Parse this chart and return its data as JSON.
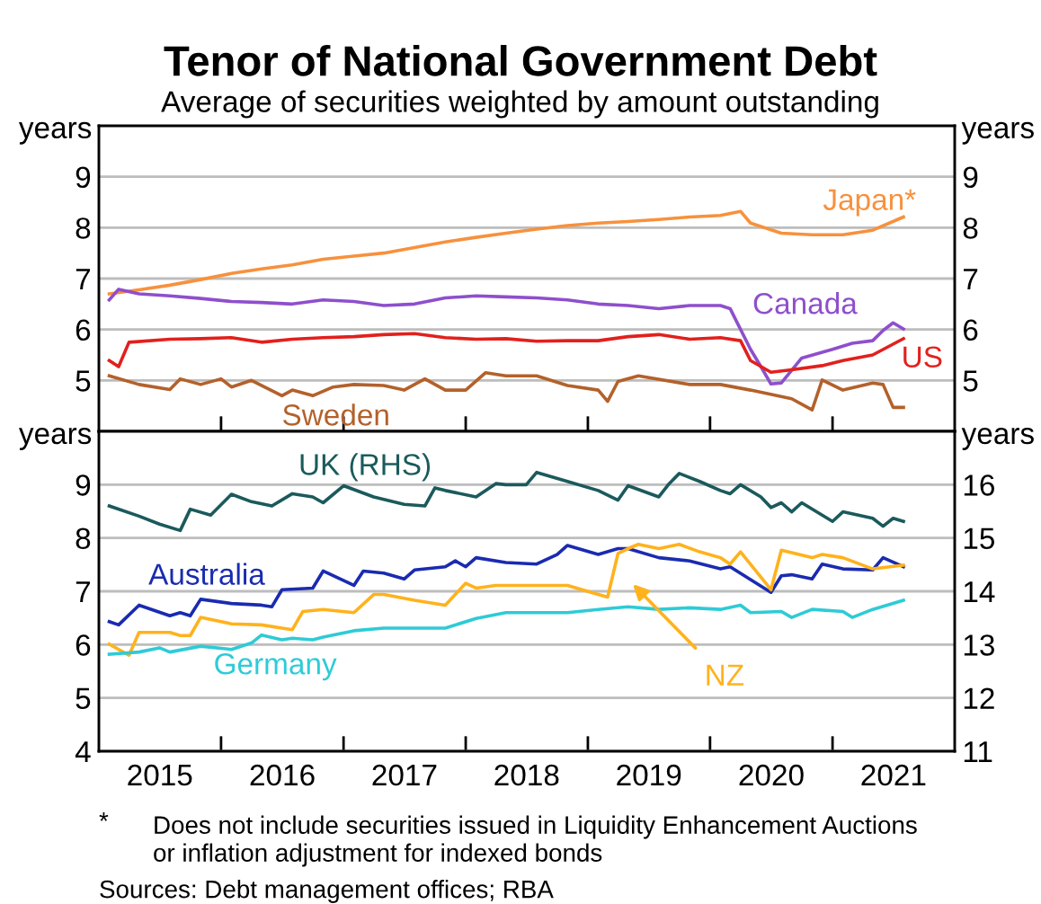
{
  "chart_data": [
    {
      "type": "line",
      "title": "Tenor of National Government Debt",
      "subtitle": "Average of securities weighted by amount outstanding",
      "ylabel": "years",
      "y2label": "years",
      "xlim": [
        "2015-01-01",
        "2022-01-01"
      ],
      "xticks": [
        {
          "value": "2016-01-01",
          "label": null
        },
        {
          "value": "2017-01-01",
          "label": null
        },
        {
          "value": "2018-01-01",
          "label": null
        },
        {
          "value": "2019-01-01",
          "label": null
        },
        {
          "value": "2020-01-01",
          "label": null
        },
        {
          "value": "2021-01-01",
          "label": null
        }
      ],
      "ylim": [
        4,
        10
      ],
      "yticks": [
        5,
        6,
        7,
        8,
        9
      ],
      "y2lim": [
        4,
        10
      ],
      "y2ticks": [
        5,
        6,
        7,
        8,
        9
      ],
      "grid": "y",
      "tick_labels": "y",
      "line_style": "solid",
      "series": [
        {
          "name": "Japan*",
          "color": "#f7913d",
          "x": [
            "2015-02",
            "2015-05",
            "2015-08",
            "2015-11",
            "2016-02",
            "2016-05",
            "2016-08",
            "2016-11",
            "2017-02",
            "2017-05",
            "2017-08",
            "2017-11",
            "2018-02",
            "2018-05",
            "2018-08",
            "2018-11",
            "2019-02",
            "2019-05",
            "2019-08",
            "2019-11",
            "2020-02",
            "2020-04",
            "2020-05",
            "2020-08",
            "2020-11",
            "2021-02",
            "2021-05",
            "2021-08"
          ],
          "values": [
            6.7,
            6.78,
            6.87,
            6.98,
            7.1,
            7.19,
            7.27,
            7.38,
            7.44,
            7.5,
            7.61,
            7.72,
            7.81,
            7.89,
            7.97,
            8.04,
            8.09,
            8.12,
            8.16,
            8.21,
            8.24,
            8.32,
            8.09,
            7.89,
            7.86,
            7.86,
            7.95,
            8.21
          ]
        },
        {
          "name": "Canada",
          "color": "#8e4fcc",
          "x": [
            "2015-02",
            "2015-03",
            "2015-05",
            "2015-08",
            "2015-11",
            "2016-02",
            "2016-05",
            "2016-08",
            "2016-11",
            "2017-02",
            "2017-05",
            "2017-08",
            "2017-11",
            "2018-02",
            "2018-05",
            "2018-08",
            "2018-11",
            "2019-02",
            "2019-05",
            "2019-08",
            "2019-11",
            "2020-02",
            "2020-03",
            "2020-05",
            "2020-06",
            "2020-07",
            "2020-08",
            "2020-10",
            "2021-01",
            "2021-03",
            "2021-05",
            "2021-06",
            "2021-07",
            "2021-08"
          ],
          "values": [
            6.58,
            6.79,
            6.7,
            6.66,
            6.61,
            6.55,
            6.53,
            6.5,
            6.58,
            6.55,
            6.47,
            6.5,
            6.62,
            6.66,
            6.64,
            6.62,
            6.58,
            6.5,
            6.47,
            6.41,
            6.47,
            6.47,
            6.41,
            5.61,
            5.27,
            4.93,
            4.95,
            5.44,
            5.61,
            5.73,
            5.78,
            5.98,
            6.13,
            6.01
          ]
        },
        {
          "name": "US",
          "color": "#e2201c",
          "x": [
            "2015-02",
            "2015-03",
            "2015-04",
            "2015-08",
            "2015-11",
            "2016-02",
            "2016-05",
            "2016-08",
            "2016-11",
            "2017-02",
            "2017-05",
            "2017-08",
            "2017-11",
            "2018-02",
            "2018-05",
            "2018-08",
            "2018-11",
            "2019-02",
            "2019-05",
            "2019-08",
            "2019-11",
            "2020-02",
            "2020-04",
            "2020-05",
            "2020-07",
            "2020-09",
            "2020-12",
            "2021-02",
            "2021-05",
            "2021-08"
          ],
          "values": [
            5.39,
            5.27,
            5.75,
            5.81,
            5.82,
            5.84,
            5.75,
            5.81,
            5.84,
            5.86,
            5.9,
            5.92,
            5.84,
            5.81,
            5.82,
            5.77,
            5.78,
            5.78,
            5.86,
            5.9,
            5.81,
            5.84,
            5.78,
            5.39,
            5.16,
            5.21,
            5.29,
            5.39,
            5.5,
            5.82
          ]
        },
        {
          "name": "Sweden",
          "color": "#b3612b",
          "x": [
            "2015-02",
            "2015-05",
            "2015-08",
            "2015-09",
            "2015-11",
            "2016-01",
            "2016-02",
            "2016-04",
            "2016-07",
            "2016-08",
            "2016-10",
            "2016-12",
            "2017-02",
            "2017-05",
            "2017-07",
            "2017-09",
            "2017-11",
            "2018-01",
            "2018-03",
            "2018-05",
            "2018-08",
            "2018-11",
            "2019-02",
            "2019-03",
            "2019-04",
            "2019-06",
            "2019-11",
            "2020-02",
            "2020-05",
            "2020-09",
            "2020-11",
            "2020-12",
            "2021-02",
            "2021-05",
            "2021-06",
            "2021-07",
            "2021-08"
          ],
          "values": [
            5.09,
            4.92,
            4.82,
            5.03,
            4.92,
            5.03,
            4.87,
            5.0,
            4.7,
            4.81,
            4.7,
            4.87,
            4.92,
            4.9,
            4.81,
            5.03,
            4.81,
            4.81,
            5.15,
            5.09,
            5.09,
            4.9,
            4.81,
            4.59,
            4.98,
            5.09,
            4.92,
            4.92,
            4.81,
            4.64,
            4.42,
            5.01,
            4.81,
            4.95,
            4.92,
            4.47,
            4.47
          ]
        }
      ]
    },
    {
      "type": "line",
      "ylabel": "years",
      "y2label": "years",
      "xlim": [
        "2015-01-01",
        "2022-01-01"
      ],
      "xticks": [
        {
          "value": "2015-07-02",
          "label": "2015"
        },
        {
          "value": "2016-01-01",
          "label": null
        },
        {
          "value": "2016-07-02",
          "label": "2016"
        },
        {
          "value": "2017-01-01",
          "label": null
        },
        {
          "value": "2017-07-02",
          "label": "2017"
        },
        {
          "value": "2018-01-01",
          "label": null
        },
        {
          "value": "2018-07-02",
          "label": "2018"
        },
        {
          "value": "2019-01-01",
          "label": null
        },
        {
          "value": "2019-07-02",
          "label": "2019"
        },
        {
          "value": "2020-01-01",
          "label": null
        },
        {
          "value": "2020-07-02",
          "label": "2020"
        },
        {
          "value": "2021-01-01",
          "label": null
        },
        {
          "value": "2021-07-02",
          "label": "2021"
        }
      ],
      "ylim": [
        4,
        10
      ],
      "yticks": [
        4,
        5,
        6,
        7,
        8,
        9
      ],
      "y2lim": [
        11,
        17
      ],
      "y2ticks": [
        11,
        12,
        13,
        14,
        15,
        16
      ],
      "grid": "y",
      "line_style": "solid",
      "annotations": [
        "*",
        "Does not include securities issued in Liquidity Enhancement Auctions\nor inflation adjustment for indexed bonds",
        "Sources: Debt management offices; RBA"
      ],
      "series": [
        {
          "name": "UK (RHS)",
          "color": "#1b5a5c",
          "axis": "y2",
          "x": [
            "2015-02",
            "2015-05",
            "2015-07",
            "2015-09",
            "2015-10",
            "2015-12",
            "2016-02",
            "2016-04",
            "2016-06",
            "2016-08",
            "2016-10",
            "2016-11",
            "2017-01",
            "2017-04",
            "2017-07",
            "2017-09",
            "2017-10",
            "2017-11",
            "2018-02",
            "2018-04",
            "2018-05",
            "2018-07",
            "2018-08",
            "2018-11",
            "2019-02",
            "2019-04",
            "2019-05",
            "2019-08",
            "2019-09",
            "2019-10",
            "2019-12",
            "2020-02",
            "2020-03",
            "2020-04",
            "2020-06",
            "2020-07",
            "2020-08",
            "2020-09",
            "2020-10",
            "2021-01",
            "2021-02",
            "2021-05",
            "2021-06",
            "2021-07",
            "2021-08"
          ],
          "values": [
            15.6,
            15.41,
            15.26,
            15.14,
            15.54,
            15.43,
            15.82,
            15.68,
            15.6,
            15.83,
            15.77,
            15.66,
            15.98,
            15.77,
            15.63,
            15.6,
            15.94,
            15.89,
            15.77,
            16.02,
            16.0,
            16.0,
            16.23,
            16.06,
            15.89,
            15.71,
            15.98,
            15.77,
            16.02,
            16.21,
            16.06,
            15.89,
            15.83,
            16.0,
            15.77,
            15.57,
            15.66,
            15.49,
            15.66,
            15.31,
            15.49,
            15.37,
            15.22,
            15.37,
            15.31
          ]
        },
        {
          "name": "Australia",
          "color": "#1a2bb0",
          "x": [
            "2015-02",
            "2015-03",
            "2015-05",
            "2015-08",
            "2015-09",
            "2015-10",
            "2015-11",
            "2016-02",
            "2016-05",
            "2016-06",
            "2016-07",
            "2016-10",
            "2016-11",
            "2017-02",
            "2017-03",
            "2017-05",
            "2017-07",
            "2017-08",
            "2017-11",
            "2017-12",
            "2018-01",
            "2018-02",
            "2018-05",
            "2018-08",
            "2018-10",
            "2018-11",
            "2019-02",
            "2019-04",
            "2019-05",
            "2019-08",
            "2019-11",
            "2020-02",
            "2020-03",
            "2020-07",
            "2020-08",
            "2020-09",
            "2020-11",
            "2020-12",
            "2021-02",
            "2021-05",
            "2021-06",
            "2021-08"
          ],
          "values": [
            6.43,
            6.37,
            6.74,
            6.54,
            6.6,
            6.54,
            6.85,
            6.77,
            6.74,
            6.71,
            7.03,
            7.06,
            7.38,
            7.11,
            7.38,
            7.34,
            7.23,
            7.4,
            7.46,
            7.57,
            7.46,
            7.63,
            7.54,
            7.51,
            7.69,
            7.86,
            7.69,
            7.8,
            7.8,
            7.63,
            7.57,
            7.42,
            7.46,
            6.98,
            7.29,
            7.31,
            7.23,
            7.51,
            7.42,
            7.4,
            7.63,
            7.46
          ]
        },
        {
          "name": "NZ",
          "color": "#ffb21c",
          "x": [
            "2015-02",
            "2015-04",
            "2015-05",
            "2015-08",
            "2015-09",
            "2015-10",
            "2015-11",
            "2016-02",
            "2016-05",
            "2016-07",
            "2016-08",
            "2016-09",
            "2016-11",
            "2017-02",
            "2017-04",
            "2017-05",
            "2017-08",
            "2017-11",
            "2018-01",
            "2018-02",
            "2018-04",
            "2018-08",
            "2018-11",
            "2019-02",
            "2019-03",
            "2019-04",
            "2019-05",
            "2019-06",
            "2019-08",
            "2019-10",
            "2019-12",
            "2020-02",
            "2020-03",
            "2020-04",
            "2020-07",
            "2020-08",
            "2020-11",
            "2020-12",
            "2021-02",
            "2021-05",
            "2021-08"
          ],
          "values": [
            6.01,
            5.8,
            6.23,
            6.23,
            6.17,
            6.17,
            6.51,
            6.39,
            6.37,
            6.31,
            6.28,
            6.62,
            6.66,
            6.6,
            6.94,
            6.94,
            6.83,
            6.74,
            7.15,
            7.06,
            7.11,
            7.11,
            7.11,
            6.94,
            6.89,
            7.71,
            7.8,
            7.88,
            7.8,
            7.88,
            7.74,
            7.63,
            7.51,
            7.74,
            7.03,
            7.77,
            7.63,
            7.69,
            7.63,
            7.42,
            7.49
          ]
        },
        {
          "name": "Germany",
          "color": "#2ecbd6",
          "x": [
            "2015-02",
            "2015-05",
            "2015-07",
            "2015-08",
            "2015-11",
            "2016-02",
            "2016-04",
            "2016-05",
            "2016-07",
            "2016-08",
            "2016-10",
            "2016-11",
            "2017-02",
            "2017-05",
            "2017-08",
            "2017-11",
            "2018-02",
            "2018-05",
            "2018-08",
            "2018-11",
            "2019-02",
            "2019-05",
            "2019-08",
            "2019-11",
            "2020-02",
            "2020-04",
            "2020-05",
            "2020-08",
            "2020-09",
            "2020-11",
            "2021-02",
            "2021-03",
            "2021-05",
            "2021-08"
          ],
          "values": [
            5.82,
            5.86,
            5.94,
            5.86,
            5.97,
            5.91,
            6.03,
            6.18,
            6.09,
            6.12,
            6.09,
            6.14,
            6.26,
            6.31,
            6.31,
            6.31,
            6.49,
            6.6,
            6.6,
            6.6,
            6.66,
            6.71,
            6.66,
            6.69,
            6.66,
            6.74,
            6.6,
            6.62,
            6.51,
            6.66,
            6.62,
            6.51,
            6.66,
            6.83
          ]
        }
      ]
    }
  ]
}
